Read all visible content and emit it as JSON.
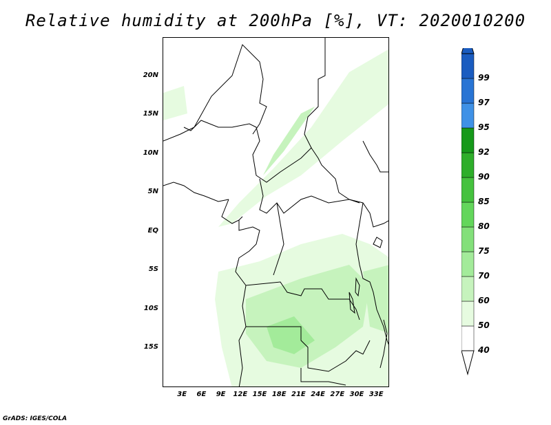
{
  "title": "Relative humidity at 200hPa [%], VT: 2020010200",
  "footer": "GrADS: IGES/COLA",
  "map": {
    "projection": "latlon",
    "lon_range": [
      0,
      35
    ],
    "lat_range": [
      -20,
      25
    ],
    "lat_labels": [
      "20N",
      "15N",
      "10N",
      "5N",
      "EQ",
      "5S",
      "10S",
      "15S"
    ],
    "lat_values": [
      20,
      15,
      10,
      5,
      0,
      -5,
      -10,
      -15
    ],
    "lon_labels": [
      "3E",
      "6E",
      "9E",
      "12E",
      "15E",
      "18E",
      "21E",
      "24E",
      "27E",
      "30E",
      "33E"
    ],
    "lon_values": [
      3,
      6,
      9,
      12,
      15,
      18,
      21,
      24,
      27,
      30,
      33
    ],
    "boundaries_color": "#000000"
  },
  "colorbar": {
    "labels": [
      "40",
      "50",
      "60",
      "70",
      "75",
      "80",
      "85",
      "90",
      "92",
      "95",
      "97",
      "99"
    ],
    "colors": [
      "#ffffff",
      "#e6fbe0",
      "#c6f3bd",
      "#a3eb9a",
      "#83e07a",
      "#63d65b",
      "#45c23e",
      "#2eae2a",
      "#16991a",
      "#3f91e6",
      "#2874d4",
      "#1a5cc0"
    ]
  },
  "humidity_colors": {
    "light": "#e6fbe0",
    "medium": "#c6f3bd",
    "dark": "#a3eb9a"
  }
}
